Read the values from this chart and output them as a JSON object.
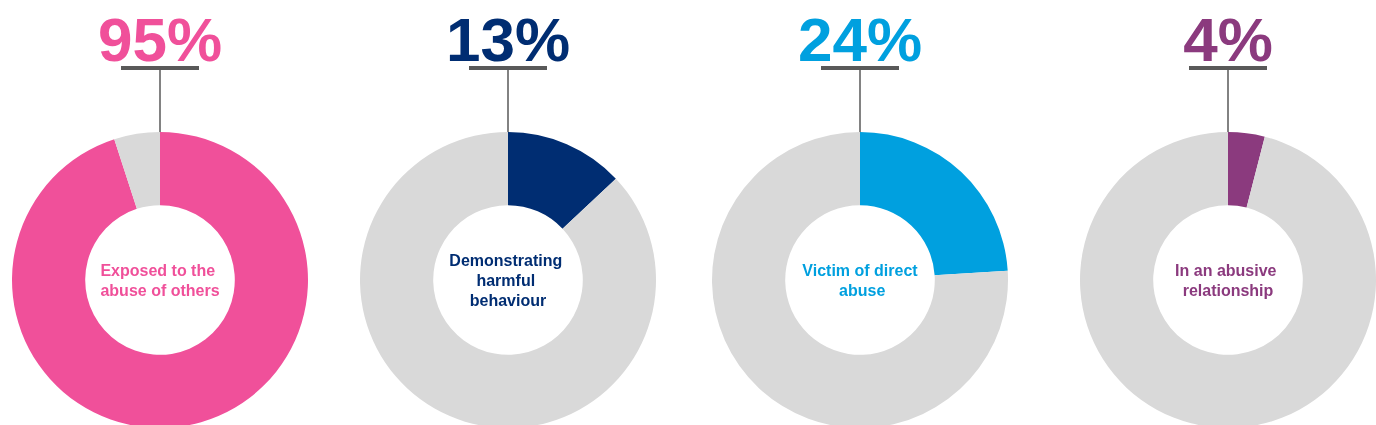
{
  "chart_data": [
    {
      "type": "donut",
      "title": "Exposed to the abuse of others",
      "categories": [
        null,
        null
      ],
      "values": [
        95,
        5
      ],
      "colors": [
        "#f0509a",
        "#d9d9d9"
      ],
      "value_labels": [
        "95%",
        null
      ]
    },
    {
      "type": "donut",
      "title": "Demonstrating harmful behaviour",
      "categories": [
        null,
        null
      ],
      "values": [
        13,
        87
      ],
      "colors": [
        "#002d72",
        "#d9d9d9"
      ],
      "value_labels": [
        "13%",
        null
      ]
    },
    {
      "type": "donut",
      "title": "Victim of direct abuse",
      "categories": [
        null,
        null
      ],
      "values": [
        24,
        76
      ],
      "colors": [
        "#00a0df",
        "#d9d9d9"
      ],
      "value_labels": [
        "24%",
        null
      ]
    },
    {
      "type": "donut",
      "title": "In an abusive relationship",
      "categories": [
        null,
        null
      ],
      "values": [
        4,
        96
      ],
      "colors": [
        "#8b3a7e",
        "#d9d9d9"
      ],
      "value_labels": [
        "4%",
        null
      ]
    }
  ]
}
